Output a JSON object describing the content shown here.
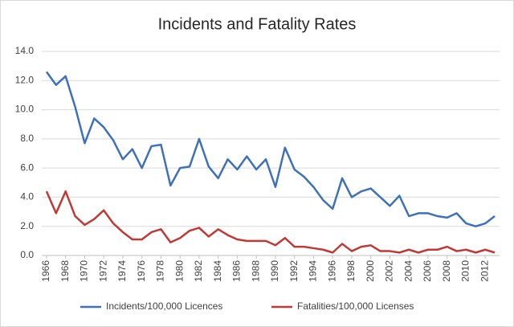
{
  "chart_data": {
    "type": "line",
    "title": "Incidents and Fatality Rates",
    "x": [
      1966,
      1967,
      1968,
      1969,
      1970,
      1971,
      1972,
      1973,
      1974,
      1975,
      1976,
      1977,
      1978,
      1979,
      1980,
      1981,
      1982,
      1983,
      1984,
      1985,
      1986,
      1987,
      1988,
      1989,
      1990,
      1991,
      1992,
      1993,
      1994,
      1995,
      1996,
      1997,
      1998,
      1999,
      2000,
      2001,
      2002,
      2003,
      2004,
      2005,
      2006,
      2007,
      2008,
      2009,
      2010,
      2011,
      2012,
      2013
    ],
    "series": [
      {
        "name": "Incidents/100,000 Licences",
        "color": "#3d71b8",
        "values": [
          12.6,
          11.7,
          12.3,
          10.2,
          7.7,
          9.4,
          8.8,
          7.9,
          6.6,
          7.3,
          6.0,
          7.5,
          7.6,
          4.8,
          6.0,
          6.1,
          8.0,
          6.1,
          5.3,
          6.6,
          5.9,
          6.8,
          5.9,
          6.6,
          4.7,
          7.4,
          5.9,
          5.4,
          4.7,
          3.8,
          3.2,
          5.3,
          4.0,
          4.4,
          4.6,
          4.0,
          3.4,
          4.1,
          2.7,
          2.9,
          2.9,
          2.7,
          2.6,
          2.9,
          2.2,
          2.0,
          2.2,
          2.7
        ]
      },
      {
        "name": "Fatalities/100,000 Licenses",
        "color": "#be3a35",
        "values": [
          4.4,
          2.9,
          4.4,
          2.7,
          2.1,
          2.5,
          3.1,
          2.2,
          1.6,
          1.1,
          1.1,
          1.6,
          1.8,
          0.9,
          1.2,
          1.7,
          1.9,
          1.3,
          1.8,
          1.4,
          1.1,
          1.0,
          1.0,
          1.0,
          0.7,
          1.2,
          0.6,
          0.6,
          0.5,
          0.4,
          0.2,
          0.8,
          0.3,
          0.6,
          0.7,
          0.3,
          0.3,
          0.2,
          0.4,
          0.2,
          0.4,
          0.4,
          0.6,
          0.3,
          0.4,
          0.2,
          0.4,
          0.2
        ]
      }
    ],
    "xlim": [
      1965.5,
      2013.5
    ],
    "xticks": [
      1966,
      1968,
      1970,
      1972,
      1974,
      1976,
      1978,
      1980,
      1982,
      1984,
      1986,
      1988,
      1990,
      1992,
      1994,
      1996,
      1998,
      2000,
      2002,
      2004,
      2006,
      2008,
      2010,
      2012
    ],
    "ylim": [
      0,
      14
    ],
    "yticks": [
      {
        "value": 0,
        "label": "0.0"
      },
      {
        "value": 2,
        "label": "2.0"
      },
      {
        "value": 4,
        "label": "4.0"
      },
      {
        "value": 6,
        "label": "6.0"
      },
      {
        "value": 8,
        "label": "8.0"
      },
      {
        "value": 10,
        "label": "10.0"
      },
      {
        "value": 12,
        "label": "12.0"
      },
      {
        "value": 14,
        "label": "14.0"
      }
    ],
    "grid": true,
    "legend": "bottom"
  }
}
